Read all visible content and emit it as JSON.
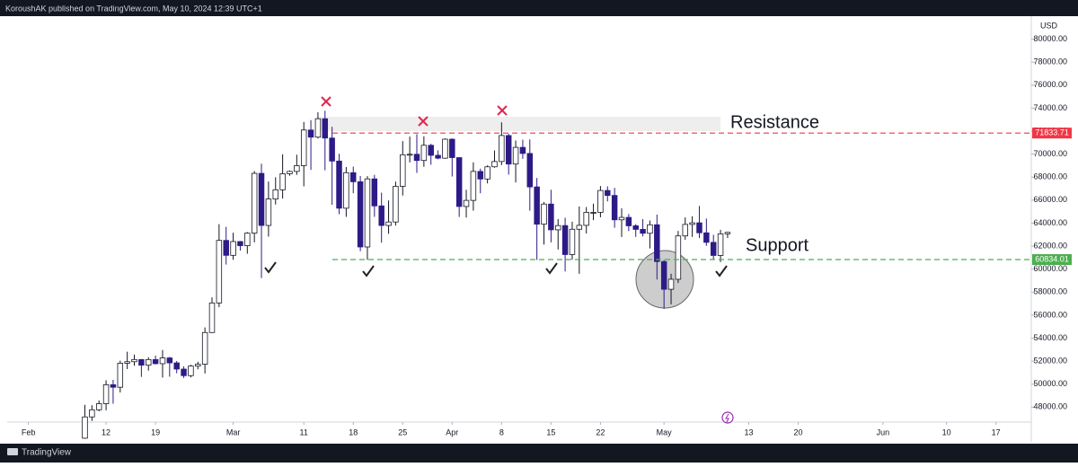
{
  "header": {
    "text": "KoroushAK published on TradingView.com, May 10, 2024 12:39 UTC+1"
  },
  "footer": {
    "brand": "TradingView"
  },
  "chart_data": {
    "type": "candlestick",
    "y_unit": "USD",
    "x": [
      "02-09",
      "02-10",
      "02-11",
      "02-12",
      "02-13",
      "02-14",
      "02-15",
      "02-16",
      "02-17",
      "02-18",
      "02-19",
      "02-20",
      "02-21",
      "02-22",
      "02-23",
      "02-24",
      "02-25",
      "02-26",
      "02-27",
      "02-28",
      "02-29",
      "03-01",
      "03-02",
      "03-03",
      "03-04",
      "03-05",
      "03-06",
      "03-07",
      "03-08",
      "03-09",
      "03-10",
      "03-11",
      "03-12",
      "03-13",
      "03-14",
      "03-15",
      "03-16",
      "03-17",
      "03-18",
      "03-19",
      "03-20",
      "03-21",
      "03-22",
      "03-23",
      "03-24",
      "03-25",
      "03-26",
      "03-27",
      "03-28",
      "03-29",
      "03-30",
      "03-31",
      "04-01",
      "04-02",
      "04-03",
      "04-04",
      "04-05",
      "04-06",
      "04-07",
      "04-08",
      "04-09",
      "04-10",
      "04-11",
      "04-12",
      "04-13",
      "04-14",
      "04-15",
      "04-16",
      "04-17",
      "04-18",
      "04-19",
      "04-20",
      "04-21",
      "04-22",
      "04-23",
      "04-24",
      "04-25",
      "04-26",
      "04-27",
      "04-28",
      "04-29",
      "04-30",
      "05-01",
      "05-02",
      "05-03",
      "05-04",
      "05-05",
      "05-06",
      "05-07",
      "05-08",
      "05-09",
      "05-10"
    ],
    "open": [
      45300,
      47150,
      47770,
      48300,
      49950,
      49730,
      51820,
      51950,
      52140,
      51650,
      52140,
      51780,
      52280,
      51850,
      51310,
      50740,
      51570,
      51730,
      54490,
      57060,
      62500,
      61200,
      62400,
      62040,
      63130,
      68330,
      63800,
      66100,
      66900,
      68300,
      68500,
      69000,
      72100,
      71480,
      73080,
      71400,
      69400,
      65300,
      68390,
      67600,
      61930,
      67850,
      65500,
      63800,
      64100,
      67200,
      69950,
      69990,
      69450,
      70770,
      69900,
      69650,
      71300,
      69700,
      65450,
      65980,
      68500,
      67840,
      68900,
      69360,
      71620,
      69140,
      70590,
      70060,
      67150,
      63910,
      65660,
      63420,
      63790,
      61270,
      63470,
      63810,
      64940,
      64940,
      66840,
      66410,
      64290,
      64500,
      63770,
      63460,
      63120,
      63860,
      60660,
      58250,
      59120,
      62890,
      63890,
      64030,
      63160,
      62330,
      61190,
      63070
    ],
    "high": [
      48200,
      48170,
      48580,
      50330,
      50370,
      52040,
      52820,
      52570,
      52180,
      52340,
      52480,
      52970,
      52370,
      52010,
      51550,
      51680,
      51950,
      54930,
      57550,
      63910,
      63680,
      63170,
      62450,
      63220,
      68530,
      69170,
      67620,
      67990,
      69990,
      68580,
      69950,
      72800,
      72960,
      73640,
      73780,
      72380,
      70030,
      68880,
      68920,
      68100,
      68090,
      68200,
      66650,
      65970,
      67610,
      71130,
      71530,
      71730,
      71550,
      70900,
      70330,
      71370,
      71370,
      69700,
      66900,
      69290,
      68740,
      69020,
      70320,
      72770,
      71760,
      71190,
      71260,
      71280,
      67930,
      65840,
      66900,
      64360,
      64470,
      64130,
      65450,
      65400,
      65700,
      67230,
      67200,
      67070,
      65290,
      64800,
      63920,
      64350,
      64230,
      64740,
      60800,
      59600,
      63320,
      64500,
      64600,
      65500,
      64400,
      62990,
      63420,
      63250
    ],
    "low": [
      45250,
      46800,
      47640,
      47720,
      48300,
      49280,
      51310,
      51600,
      50630,
      51180,
      51710,
      50570,
      50650,
      50950,
      50540,
      50590,
      51290,
      50930,
      54450,
      56700,
      60400,
      60810,
      61610,
      61340,
      62330,
      59220,
      62830,
      65620,
      66140,
      68130,
      68200,
      67200,
      68630,
      71360,
      68600,
      65600,
      64780,
      64550,
      66600,
      61560,
      60810,
      64550,
      62300,
      63070,
      63790,
      66400,
      69280,
      68370,
      68900,
      69080,
      69560,
      69600,
      68060,
      64540,
      64490,
      65090,
      66600,
      67460,
      68820,
      69050,
      68220,
      67540,
      69590,
      65090,
      60800,
      62140,
      62330,
      61710,
      59800,
      60830,
      59600,
      63100,
      64260,
      64510,
      65890,
      63600,
      62800,
      63310,
      62800,
      62850,
      61800,
      59100,
      56550,
      56940,
      58800,
      62560,
      62800,
      62700,
      62030,
      60880,
      60620,
      62700
    ],
    "close": [
      47150,
      47770,
      48300,
      49950,
      49730,
      51820,
      51950,
      52140,
      51650,
      52140,
      51780,
      52280,
      51850,
      51310,
      50740,
      51570,
      51730,
      54490,
      57060,
      62500,
      61200,
      62400,
      62040,
      63130,
      68330,
      63800,
      66100,
      66900,
      68300,
      68500,
      69000,
      72100,
      71480,
      73080,
      71400,
      69400,
      65300,
      68390,
      67600,
      61930,
      67850,
      65500,
      63800,
      64100,
      67200,
      69950,
      69990,
      69450,
      70770,
      69900,
      69650,
      71300,
      69700,
      65450,
      65980,
      68500,
      67840,
      68900,
      69360,
      71620,
      69140,
      70590,
      70060,
      67150,
      63910,
      65660,
      63420,
      63790,
      61270,
      63470,
      63810,
      64940,
      64940,
      66840,
      66410,
      64290,
      64500,
      63770,
      63460,
      63120,
      63860,
      60660,
      58250,
      59120,
      62890,
      63890,
      64030,
      63160,
      62330,
      61190,
      63070,
      63200
    ],
    "up_color": "#ffffff",
    "down_color": "#2e1a87",
    "xlim": [
      "01-29",
      "06-22"
    ],
    "xticks": [
      {
        "value": "02-01",
        "label": "Feb"
      },
      {
        "value": "02-12",
        "label": "12"
      },
      {
        "value": "02-19",
        "label": "19"
      },
      {
        "value": "03-01",
        "label": "Mar"
      },
      {
        "value": "03-11",
        "label": "11"
      },
      {
        "value": "03-18",
        "label": "18"
      },
      {
        "value": "03-25",
        "label": "25"
      },
      {
        "value": "04-01",
        "label": "Apr"
      },
      {
        "value": "04-08",
        "label": "8"
      },
      {
        "value": "04-15",
        "label": "15"
      },
      {
        "value": "04-22",
        "label": "22"
      },
      {
        "value": "05-01",
        "label": "May"
      },
      {
        "value": "05-13",
        "label": "13"
      },
      {
        "value": "05-20",
        "label": "20"
      },
      {
        "value": "06-01",
        "label": "Jun"
      },
      {
        "value": "06-10",
        "label": "10"
      },
      {
        "value": "06-17",
        "label": "17"
      }
    ],
    "ylim": [
      46700,
      82000
    ],
    "yticks": [
      {
        "value": 80000,
        "label": "80000.00"
      },
      {
        "value": 78000,
        "label": "78000.00"
      },
      {
        "value": 76000,
        "label": "76000.00"
      },
      {
        "value": 74000,
        "label": "74000.00"
      },
      {
        "value": 72000,
        "label": "72000.00"
      },
      {
        "value": 70000,
        "label": "70000.00"
      },
      {
        "value": 68000,
        "label": "68000.00"
      },
      {
        "value": 66000,
        "label": "66000.00"
      },
      {
        "value": 64000,
        "label": "64000.00"
      },
      {
        "value": 62000,
        "label": "62000.00"
      },
      {
        "value": 60000,
        "label": "60000.00"
      },
      {
        "value": 58000,
        "label": "58000.00"
      },
      {
        "value": 56000,
        "label": "56000.00"
      },
      {
        "value": 54000,
        "label": "54000.00"
      },
      {
        "value": 52000,
        "label": "52000.00"
      },
      {
        "value": 50000,
        "label": "50000.00"
      },
      {
        "value": 48000,
        "label": "48000.00"
      }
    ],
    "levels": [
      {
        "name": "Resistance",
        "value": 71833.71,
        "color": "#f23645"
      },
      {
        "name": "Support",
        "value": 60834.01,
        "color": "#4caf50"
      }
    ]
  }
}
